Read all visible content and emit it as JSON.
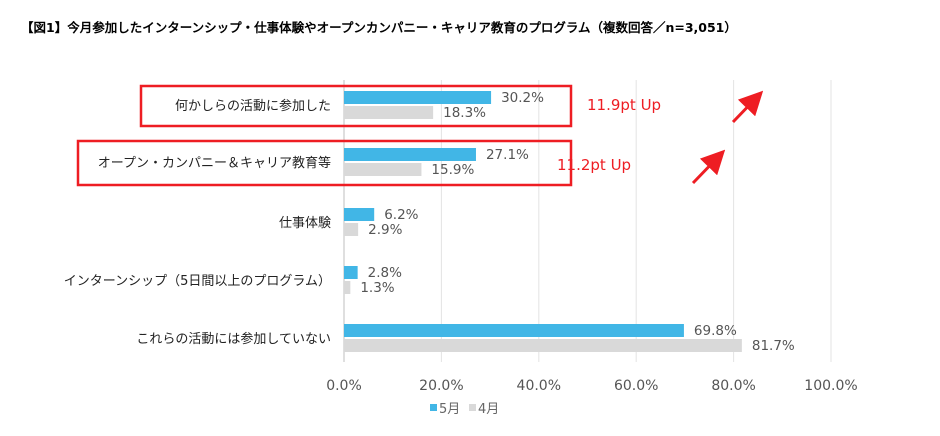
{
  "title": "【図1】今月参加したインターンシップ・仕事体験やオープンカンパニー・キャリア教育のプログラム（複数回答／n=3,051）",
  "colors": {
    "may": "#41b6e6",
    "april": "#d9d9d9",
    "highlight": "#ee1d23"
  },
  "annotations": [
    "11.9pt Up",
    "11.2pt Up"
  ],
  "chart_data": {
    "type": "bar",
    "orientation": "horizontal",
    "categories": [
      "何かしらの活動に参加した",
      "オープン・カンパニー＆キャリア教育等",
      "仕事体験",
      "インターンシップ（5日間以上のプログラム）",
      "これらの活動には参加していない"
    ],
    "series": [
      {
        "name": "5月",
        "values": [
          30.2,
          27.1,
          6.2,
          2.8,
          69.8
        ],
        "labels": [
          "30.2%",
          "27.1%",
          "6.2%",
          "2.8%",
          "69.8%"
        ]
      },
      {
        "name": "4月",
        "values": [
          18.3,
          15.9,
          2.9,
          1.3,
          81.7
        ],
        "labels": [
          "18.3%",
          "15.9%",
          "2.9%",
          "1.3%",
          "81.7%"
        ]
      }
    ],
    "xlim": [
      0,
      100
    ],
    "ticks": [
      "0.0%",
      "20.0%",
      "40.0%",
      "60.0%",
      "80.0%",
      "100.0%"
    ],
    "grid": true,
    "legend_position": "bottom-center",
    "highlighted_categories": [
      0,
      1
    ]
  }
}
